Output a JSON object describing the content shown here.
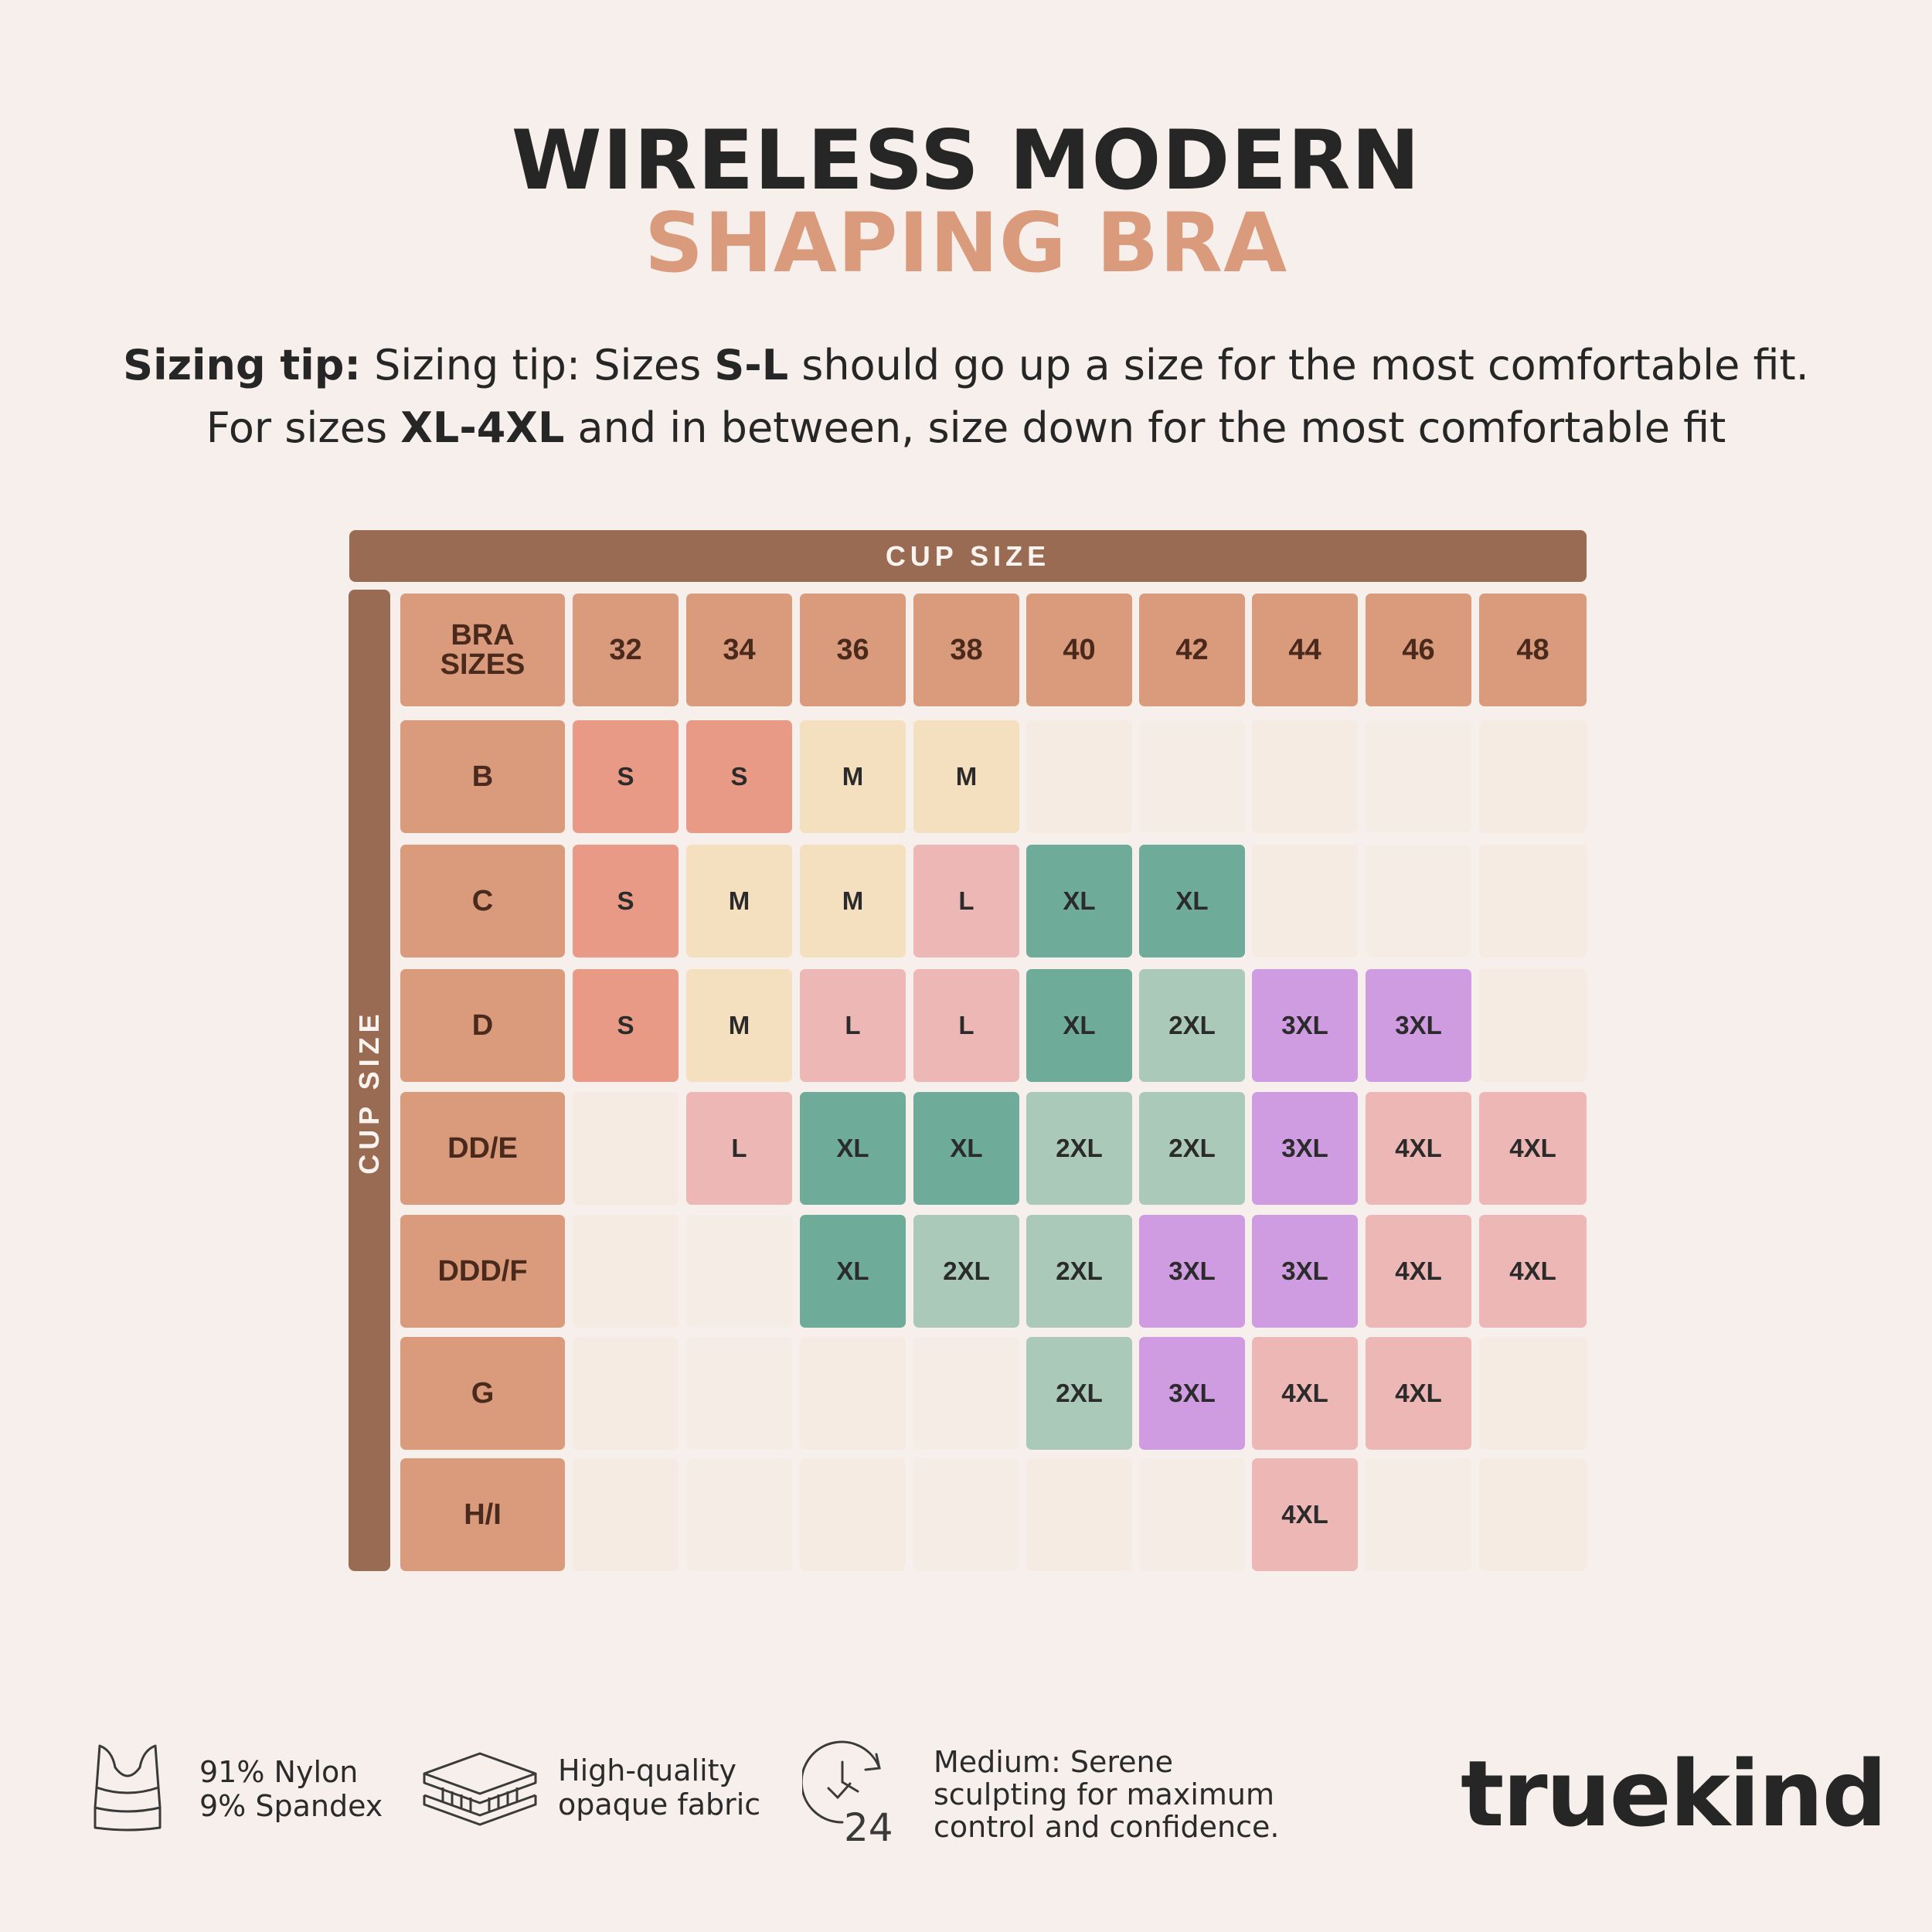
{
  "title": {
    "line1": "WIRELESS MODERN",
    "line2": "SHAPING BRA"
  },
  "tip": {
    "line1": {
      "lead": "Sizing tip:",
      "a": " Sizing tip: Sizes ",
      "b": "S-L",
      "c": " should go up a size for the most comfortable fit."
    },
    "line2": {
      "a": "For sizes ",
      "b": "XL-4XL",
      "c": " and in between, size down for the most comfortable fit"
    }
  },
  "table": {
    "top_header": "CUP SIZE",
    "side_header": "CUP SIZE",
    "corner_line1": "BRA",
    "corner_line2": "SIZES",
    "band_sizes": [
      "32",
      "34",
      "36",
      "38",
      "40",
      "42",
      "44",
      "46",
      "48"
    ],
    "cups": [
      "B",
      "C",
      "D",
      "DD/E",
      "DDD/F",
      "G",
      "H/I"
    ],
    "cells": [
      [
        "S",
        "S",
        "M",
        "M",
        "",
        "",
        "",
        "",
        ""
      ],
      [
        "S",
        "M",
        "M",
        "L",
        "XL",
        "XL",
        "",
        "",
        ""
      ],
      [
        "S",
        "M",
        "L",
        "L",
        "XL",
        "2XL",
        "3XL",
        "3XL",
        ""
      ],
      [
        "",
        "L",
        "XL",
        "XL",
        "2XL",
        "2XL",
        "3XL",
        "4XL",
        "4XL"
      ],
      [
        "",
        "",
        "XL",
        "2XL",
        "2XL",
        "3XL",
        "3XL",
        "4XL",
        "4XL"
      ],
      [
        "",
        "",
        "",
        "",
        "2XL",
        "3XL",
        "4XL",
        "4XL",
        ""
      ],
      [
        "",
        "",
        "",
        "",
        "",
        "",
        "4XL",
        "",
        ""
      ]
    ],
    "colors": {
      "S": "#e99a86",
      "M": "#f4e0bf",
      "L": "#edb7b5",
      "XL": "#6eab99",
      "2XL": "#aac9b8",
      "3XL": "#cf9be1",
      "4XL": "#edb7b5",
      "empty_a": "#f6ebe2",
      "empty_b": "#f5ece5"
    }
  },
  "features": [
    {
      "icon": "bra-icon",
      "lines": [
        "91% Nylon",
        "9% Spandex"
      ]
    },
    {
      "icon": "fabric-layers-icon",
      "lines": [
        "High-quality",
        "opaque fabric"
      ]
    },
    {
      "icon": "24-hour-clock-icon",
      "icon_text": "24",
      "lines": [
        "Medium: Serene",
        "sculpting for maximum",
        "control and confidence."
      ]
    }
  ],
  "brand": "truekind"
}
